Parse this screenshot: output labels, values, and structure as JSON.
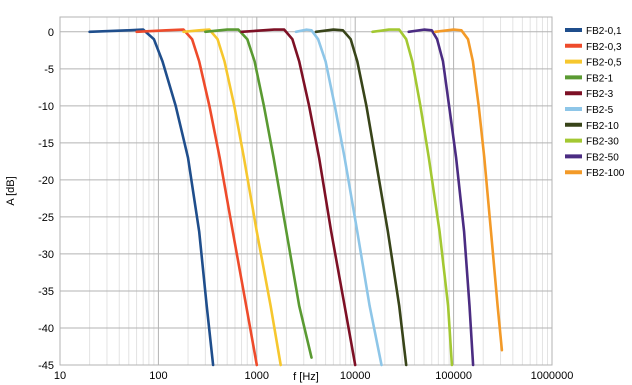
{
  "chart_data": {
    "type": "line",
    "xlabel": "f [Hz]",
    "ylabel": "A [dB]",
    "xscale": "log",
    "xlim": [
      10,
      1000000
    ],
    "ylim": [
      -45,
      2
    ],
    "x_ticks": [
      10,
      100,
      1000,
      10000,
      100000,
      1000000
    ],
    "x_tick_labels": [
      "10",
      "100",
      "1000",
      "10000",
      "100000",
      "1000000"
    ],
    "y_ticks": [
      0,
      -5,
      -10,
      -15,
      -20,
      -25,
      -30,
      -35,
      -40,
      -45
    ],
    "y_tick_labels": [
      "0",
      "-5",
      "-10",
      "-15",
      "-20",
      "-25",
      "-30",
      "-35",
      "-40",
      "-45"
    ],
    "grid": true,
    "legend_position": "right",
    "series": [
      {
        "name": "FB2-0,1",
        "color": "#1f4e8c",
        "points": [
          [
            20,
            0
          ],
          [
            50,
            0.2
          ],
          [
            70,
            0.3
          ],
          [
            90,
            -1
          ],
          [
            110,
            -4
          ],
          [
            150,
            -10
          ],
          [
            200,
            -17
          ],
          [
            260,
            -27
          ],
          [
            310,
            -37
          ],
          [
            360,
            -45
          ]
        ]
      },
      {
        "name": "FB2-0,3",
        "color": "#ee4b2b",
        "points": [
          [
            60,
            0
          ],
          [
            120,
            0.2
          ],
          [
            180,
            0.3
          ],
          [
            220,
            -1
          ],
          [
            260,
            -4
          ],
          [
            330,
            -10
          ],
          [
            420,
            -17
          ],
          [
            570,
            -27
          ],
          [
            780,
            -37
          ],
          [
            1000,
            -45
          ]
        ]
      },
      {
        "name": "FB2-0,5",
        "color": "#f6c72e",
        "points": [
          [
            180,
            0
          ],
          [
            260,
            0.2
          ],
          [
            330,
            0.3
          ],
          [
            400,
            -1
          ],
          [
            470,
            -4
          ],
          [
            590,
            -10
          ],
          [
            740,
            -17
          ],
          [
            1000,
            -27
          ],
          [
            1380,
            -37
          ],
          [
            1750,
            -45
          ]
        ]
      },
      {
        "name": "FB2-1",
        "color": "#5a9a32",
        "points": [
          [
            300,
            0
          ],
          [
            500,
            0.3
          ],
          [
            650,
            0.3
          ],
          [
            800,
            -1
          ],
          [
            950,
            -4
          ],
          [
            1180,
            -10
          ],
          [
            1480,
            -17
          ],
          [
            2000,
            -27
          ],
          [
            2700,
            -37
          ],
          [
            3600,
            -44
          ]
        ]
      },
      {
        "name": "FB2-3",
        "color": "#7d1025",
        "points": [
          [
            700,
            0
          ],
          [
            1500,
            0.3
          ],
          [
            1900,
            0.3
          ],
          [
            2300,
            -1
          ],
          [
            2700,
            -4
          ],
          [
            3400,
            -10
          ],
          [
            4300,
            -17
          ],
          [
            5700,
            -27
          ],
          [
            7800,
            -37
          ],
          [
            10000,
            -45
          ]
        ]
      },
      {
        "name": "FB2-5",
        "color": "#8ec6e8",
        "points": [
          [
            2500,
            0
          ],
          [
            3200,
            0.3
          ],
          [
            3600,
            0.2
          ],
          [
            4200,
            -1
          ],
          [
            5000,
            -4
          ],
          [
            6200,
            -10
          ],
          [
            7800,
            -17
          ],
          [
            10500,
            -27
          ],
          [
            14000,
            -37
          ],
          [
            18500,
            -45
          ]
        ]
      },
      {
        "name": "FB2-10",
        "color": "#384419",
        "points": [
          [
            4000,
            0
          ],
          [
            6000,
            0.3
          ],
          [
            7500,
            0.2
          ],
          [
            9000,
            -1
          ],
          [
            10500,
            -4
          ],
          [
            13000,
            -10
          ],
          [
            16000,
            -17
          ],
          [
            21500,
            -27
          ],
          [
            28000,
            -37
          ],
          [
            33000,
            -45
          ]
        ]
      },
      {
        "name": "FB2-30",
        "color": "#a3c832",
        "points": [
          [
            15000,
            0
          ],
          [
            22000,
            0.3
          ],
          [
            28000,
            0.3
          ],
          [
            33000,
            -1
          ],
          [
            38000,
            -4
          ],
          [
            46000,
            -10
          ],
          [
            56000,
            -17
          ],
          [
            72000,
            -27
          ],
          [
            88000,
            -37
          ],
          [
            96000,
            -45
          ]
        ]
      },
      {
        "name": "FB2-50",
        "color": "#4b2c82",
        "points": [
          [
            35000,
            0
          ],
          [
            50000,
            0.3
          ],
          [
            60000,
            0.2
          ],
          [
            68000,
            -1
          ],
          [
            78000,
            -4
          ],
          [
            90000,
            -10
          ],
          [
            106000,
            -17
          ],
          [
            128000,
            -27
          ],
          [
            145000,
            -37
          ],
          [
            158000,
            -45
          ]
        ]
      },
      {
        "name": "FB2-100",
        "color": "#f39a28",
        "points": [
          [
            65000,
            0
          ],
          [
            100000,
            0.3
          ],
          [
            120000,
            0.2
          ],
          [
            140000,
            -1
          ],
          [
            157000,
            -4
          ],
          [
            180000,
            -10
          ],
          [
            205000,
            -17
          ],
          [
            240000,
            -27
          ],
          [
            280000,
            -37
          ],
          [
            310000,
            -43
          ]
        ]
      }
    ]
  }
}
